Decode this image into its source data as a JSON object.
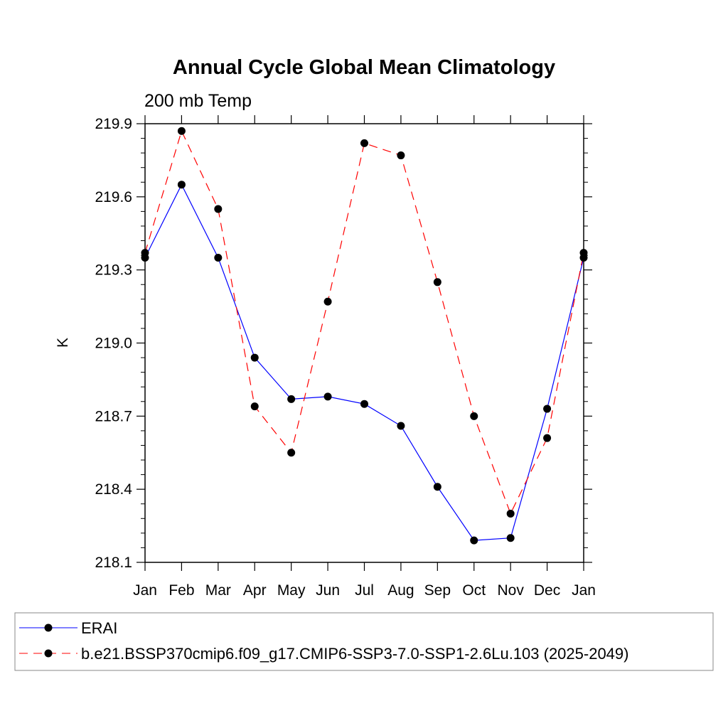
{
  "chart_data": {
    "type": "line",
    "title": "Annual Cycle Global Mean Climatology",
    "subtitle": "200 mb Temp",
    "xlabel": "",
    "ylabel": "K",
    "categories": [
      "Jan",
      "Feb",
      "Mar",
      "Apr",
      "May",
      "Jun",
      "Jul",
      "Aug",
      "Sep",
      "Oct",
      "Nov",
      "Dec",
      "Jan"
    ],
    "ylim": [
      218.1,
      219.9
    ],
    "yticks": [
      218.1,
      218.4,
      218.7,
      219.0,
      219.3,
      219.6,
      219.9
    ],
    "ytick_labels": [
      "218.1",
      "218.4",
      "218.7",
      "219.0",
      "219.3",
      "219.6",
      "219.9"
    ],
    "grid": false,
    "legend_position": "bottom",
    "series": [
      {
        "name": "ERAI",
        "color": "#0000ff",
        "dash": "solid",
        "values": [
          219.35,
          219.65,
          219.35,
          218.94,
          218.77,
          218.78,
          218.75,
          218.66,
          218.41,
          218.19,
          218.2,
          218.73,
          219.35
        ]
      },
      {
        "name": "b.e21.BSSP370cmip6.f09_g17.CMIP6-SSP3-7.0-SSP1-2.6Lu.103 (2025-2049)",
        "color": "#ff0000",
        "dash": "dashed",
        "values": [
          219.37,
          219.87,
          219.55,
          218.74,
          218.55,
          219.17,
          219.82,
          219.77,
          219.25,
          218.7,
          218.3,
          218.61,
          219.37
        ]
      }
    ]
  }
}
